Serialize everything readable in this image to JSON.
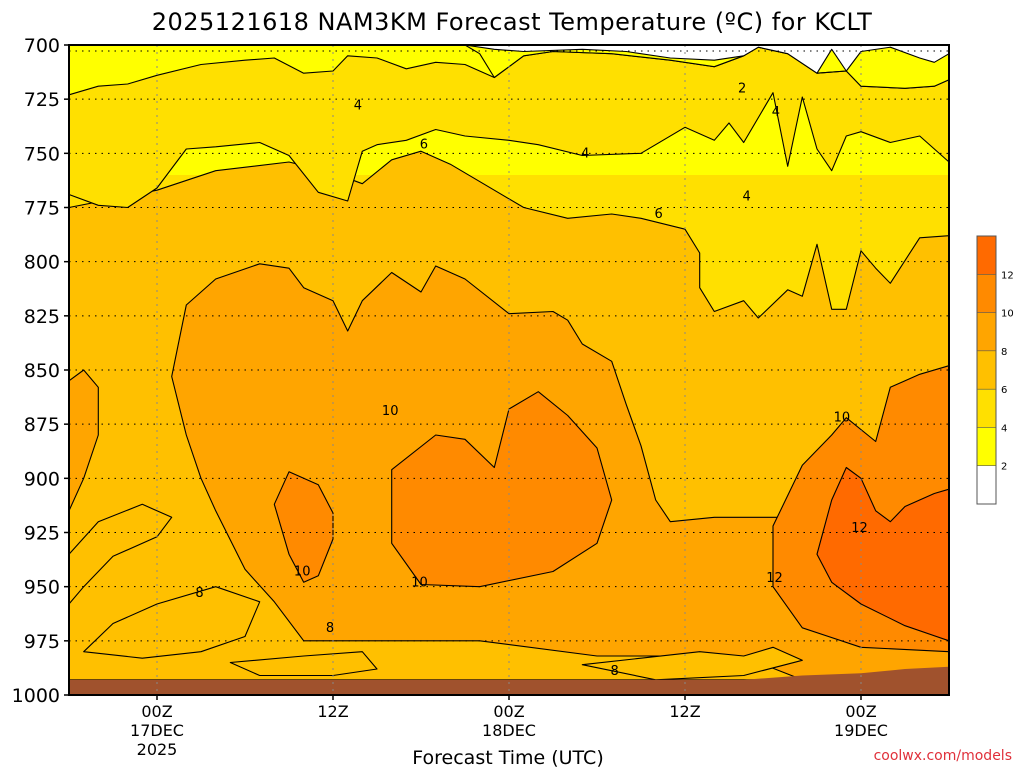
{
  "chart_data": {
    "type": "heatmap",
    "title": "2025121618 NAM3KM Forecast Temperature (ºC) for KCLT",
    "xlabel": "Forecast Time (UTC)",
    "ylabel": "",
    "credit": "coolwx.com/models",
    "x_hours_range": [
      -6,
      54
    ],
    "y_pressure_range": [
      700,
      1000
    ],
    "y_ticks": [
      "700",
      "725",
      "750",
      "775",
      "800",
      "825",
      "850",
      "875",
      "900",
      "925",
      "950",
      "975",
      "1000"
    ],
    "x_ticks": [
      {
        "hour": 0,
        "label": "00Z",
        "date": "17DEC",
        "year": "2025"
      },
      {
        "hour": 12,
        "label": "12Z",
        "date": "",
        "year": ""
      },
      {
        "hour": 24,
        "label": "00Z",
        "date": "18DEC",
        "year": ""
      },
      {
        "hour": 36,
        "label": "12Z",
        "date": "",
        "year": ""
      },
      {
        "hour": 48,
        "label": "00Z",
        "date": "19DEC",
        "year": ""
      }
    ],
    "colorbar": {
      "levels": [
        2,
        4,
        6,
        8,
        10,
        12
      ],
      "labels": [
        "2",
        "4",
        "6",
        "8",
        "10",
        "12"
      ],
      "colors": [
        "#ffffff",
        "#ffff00",
        "#ffe000",
        "#ffc000",
        "#ffa500",
        "#ff8a00",
        "#ff6a00"
      ]
    },
    "contour_labels": [
      {
        "text": "2",
        "hour": 39.9,
        "p": 720
      },
      {
        "text": "4",
        "hour": 13.7,
        "p": 728
      },
      {
        "text": "4",
        "hour": 29.2,
        "p": 750
      },
      {
        "text": "4",
        "hour": 42.2,
        "p": 731
      },
      {
        "text": "4",
        "hour": 40.2,
        "p": 770
      },
      {
        "text": "6",
        "hour": 18.2,
        "p": 746
      },
      {
        "text": "6",
        "hour": 34.2,
        "p": 778
      },
      {
        "text": "8",
        "hour": 2.9,
        "p": 953
      },
      {
        "text": "8",
        "hour": 11.8,
        "p": 969
      },
      {
        "text": "8",
        "hour": 31.2,
        "p": 989
      },
      {
        "text": "10",
        "hour": 15.9,
        "p": 869
      },
      {
        "text": "10",
        "hour": 9.9,
        "p": 943
      },
      {
        "text": "10",
        "hour": 17.9,
        "p": 948
      },
      {
        "text": "10",
        "hour": 46.7,
        "p": 872
      },
      {
        "text": "12",
        "hour": 47.9,
        "p": 923
      },
      {
        "text": "12",
        "hour": 42.1,
        "p": 946
      }
    ],
    "ground_surface": [
      {
        "hour": -6,
        "p": 993
      },
      {
        "hour": 40,
        "p": 993
      },
      {
        "hour": 44,
        "p": 991
      },
      {
        "hour": 48,
        "p": 990
      },
      {
        "hour": 51,
        "p": 988
      },
      {
        "hour": 54,
        "p": 987
      }
    ],
    "regions": [
      {
        "level": "6-8",
        "points": [
          [
            -6,
            775
          ],
          [
            0,
            767
          ],
          [
            4,
            758
          ],
          [
            9,
            754
          ],
          [
            12,
            759
          ],
          [
            14,
            764
          ],
          [
            16,
            753
          ],
          [
            18,
            749
          ],
          [
            20,
            755
          ],
          [
            23,
            767
          ],
          [
            25,
            775
          ],
          [
            28,
            780
          ],
          [
            31,
            778
          ],
          [
            33,
            780
          ],
          [
            36,
            785
          ],
          [
            37,
            796
          ],
          [
            37,
            812
          ],
          [
            38,
            823
          ],
          [
            40,
            818
          ],
          [
            41,
            826
          ],
          [
            43,
            813
          ],
          [
            44,
            816
          ],
          [
            45,
            792
          ],
          [
            46,
            822
          ],
          [
            47,
            822
          ],
          [
            48,
            795
          ],
          [
            49,
            803
          ],
          [
            50,
            810
          ],
          [
            52,
            789
          ],
          [
            54,
            788
          ],
          [
            54,
            993
          ],
          [
            -6,
            993
          ]
        ]
      },
      {
        "level": "8-10",
        "points": [
          [
            1,
            853
          ],
          [
            2,
            820
          ],
          [
            4,
            808
          ],
          [
            7,
            801
          ],
          [
            9,
            803
          ],
          [
            10,
            812
          ],
          [
            12,
            818
          ],
          [
            13,
            832
          ],
          [
            14,
            818
          ],
          [
            16,
            805
          ],
          [
            18,
            814
          ],
          [
            19,
            802
          ],
          [
            21,
            808
          ],
          [
            24,
            824
          ],
          [
            27,
            823
          ],
          [
            28,
            827
          ],
          [
            29,
            838
          ],
          [
            31,
            846
          ],
          [
            32,
            866
          ],
          [
            33,
            885
          ],
          [
            34,
            910
          ],
          [
            35,
            920
          ],
          [
            38,
            918
          ],
          [
            41,
            918
          ],
          [
            43,
            918
          ],
          [
            44,
            914
          ],
          [
            45,
            917
          ],
          [
            47,
            918
          ],
          [
            49,
            905
          ],
          [
            51,
            897
          ],
          [
            54,
            896
          ],
          [
            54,
            993
          ],
          [
            44,
            993
          ],
          [
            41,
            985
          ],
          [
            36,
            982
          ],
          [
            30,
            982
          ],
          [
            22,
            975
          ],
          [
            15,
            975
          ],
          [
            10,
            975
          ],
          [
            8,
            957
          ],
          [
            6,
            942
          ],
          [
            4,
            915
          ],
          [
            3,
            900
          ],
          [
            2,
            880
          ]
        ]
      },
      {
        "level": "8-10",
        "points": [
          [
            -6,
            855
          ],
          [
            -5,
            850
          ],
          [
            -4,
            858
          ],
          [
            -4,
            880
          ],
          [
            -5,
            900
          ],
          [
            -6,
            915
          ]
        ]
      },
      {
        "level": "10-12",
        "points": [
          [
            8,
            912
          ],
          [
            9,
            897
          ],
          [
            11,
            903
          ],
          [
            12,
            916
          ],
          [
            12,
            928
          ],
          [
            11,
            945
          ],
          [
            10,
            948
          ],
          [
            9,
            935
          ]
        ]
      },
      {
        "level": "10-12",
        "points": [
          [
            16,
            896
          ],
          [
            19,
            880
          ],
          [
            21,
            882
          ],
          [
            23,
            895
          ],
          [
            24,
            868
          ],
          [
            26,
            860
          ],
          [
            28,
            871
          ],
          [
            30,
            886
          ],
          [
            31,
            910
          ],
          [
            30,
            930
          ],
          [
            27,
            943
          ],
          [
            22,
            950
          ],
          [
            18,
            949
          ],
          [
            16,
            930
          ]
        ]
      },
      {
        "level": "10-12",
        "points": [
          [
            42,
            922
          ],
          [
            44,
            894
          ],
          [
            46,
            880
          ],
          [
            47,
            872
          ],
          [
            49,
            883
          ],
          [
            50,
            858
          ],
          [
            52,
            852
          ],
          [
            54,
            848
          ],
          [
            54,
            980
          ],
          [
            48,
            978
          ],
          [
            44,
            969
          ],
          [
            42,
            950
          ]
        ]
      },
      {
        "level": "12-",
        "points": [
          [
            45,
            935
          ],
          [
            46,
            910
          ],
          [
            47,
            895
          ],
          [
            48,
            900
          ],
          [
            49,
            915
          ],
          [
            50,
            920
          ],
          [
            51,
            913
          ],
          [
            53,
            907
          ],
          [
            54,
            905
          ],
          [
            54,
            975
          ],
          [
            51,
            968
          ],
          [
            48,
            958
          ],
          [
            46,
            948
          ]
        ]
      },
      {
        "level": "6-8",
        "points": [
          [
            -6,
            935
          ],
          [
            -4,
            920
          ],
          [
            -1,
            912
          ],
          [
            1,
            918
          ],
          [
            0,
            927
          ],
          [
            -3,
            936
          ],
          [
            -5,
            950
          ],
          [
            -6,
            958
          ]
        ]
      },
      {
        "level": "6-8",
        "points": [
          [
            -5,
            980
          ],
          [
            -3,
            967
          ],
          [
            0,
            958
          ],
          [
            4,
            950
          ],
          [
            7,
            957
          ],
          [
            6,
            973
          ],
          [
            3,
            980
          ],
          [
            -1,
            983
          ]
        ]
      },
      {
        "level": "6-8",
        "points": [
          [
            5,
            985
          ],
          [
            10,
            982
          ],
          [
            14,
            980
          ],
          [
            15,
            988
          ],
          [
            12,
            991
          ],
          [
            7,
            991
          ]
        ]
      },
      {
        "level": "6-8",
        "points": [
          [
            29,
            986
          ],
          [
            33,
            983
          ],
          [
            37,
            980
          ],
          [
            40,
            982
          ],
          [
            42,
            978
          ],
          [
            44,
            984
          ],
          [
            40,
            991
          ],
          [
            34,
            993
          ]
        ]
      },
      {
        "level": "4-6",
        "points": [
          [
            -6,
            723
          ],
          [
            -4,
            719
          ],
          [
            -2,
            718
          ],
          [
            0,
            714
          ],
          [
            3,
            709
          ],
          [
            6,
            707
          ],
          [
            8,
            706
          ],
          [
            10,
            713
          ],
          [
            12,
            712
          ],
          [
            13,
            705
          ],
          [
            15,
            706
          ],
          [
            17,
            711
          ],
          [
            19,
            708
          ],
          [
            21,
            709
          ],
          [
            23,
            715
          ],
          [
            25,
            705
          ],
          [
            27,
            703
          ],
          [
            31,
            704
          ],
          [
            35,
            707
          ],
          [
            38,
            710
          ],
          [
            40,
            705
          ],
          [
            41,
            701
          ],
          [
            43,
            704
          ],
          [
            45,
            713
          ],
          [
            47,
            712
          ],
          [
            48,
            719
          ],
          [
            51,
            720
          ],
          [
            53,
            719
          ],
          [
            54,
            716
          ],
          [
            54,
            754
          ],
          [
            52,
            742
          ],
          [
            50,
            745
          ],
          [
            48,
            740
          ],
          [
            47,
            742
          ],
          [
            46,
            758
          ],
          [
            45,
            748
          ],
          [
            44,
            724
          ],
          [
            43,
            756
          ],
          [
            42,
            722
          ],
          [
            40,
            745
          ],
          [
            39,
            736
          ],
          [
            38,
            744
          ],
          [
            36,
            738
          ],
          [
            33,
            750
          ],
          [
            29,
            751
          ],
          [
            26,
            746
          ],
          [
            24,
            744
          ],
          [
            21,
            742
          ],
          [
            19,
            739
          ],
          [
            17,
            744
          ],
          [
            15,
            746
          ],
          [
            14,
            749
          ],
          [
            13,
            772
          ],
          [
            11,
            768
          ],
          [
            9,
            751
          ],
          [
            7,
            745
          ],
          [
            4,
            747
          ],
          [
            2,
            748
          ],
          [
            0,
            766
          ],
          [
            -2,
            775
          ],
          [
            -4,
            774
          ],
          [
            -6,
            769
          ]
        ]
      },
      {
        "level": "2-4",
        "points": [
          [
            21,
            700
          ],
          [
            40,
            700
          ],
          [
            41,
            701
          ],
          [
            43,
            704
          ],
          [
            45,
            713
          ],
          [
            47,
            712
          ],
          [
            47,
            700
          ],
          [
            54,
            700
          ],
          [
            54,
            716
          ],
          [
            53,
            719
          ],
          [
            51,
            720
          ],
          [
            48,
            719
          ],
          [
            47,
            712
          ],
          [
            45,
            713
          ],
          [
            43,
            704
          ],
          [
            41,
            701
          ],
          [
            40,
            705
          ],
          [
            38,
            710
          ],
          [
            35,
            707
          ],
          [
            31,
            704
          ],
          [
            27,
            703
          ],
          [
            25,
            705
          ],
          [
            23,
            715
          ],
          [
            22,
            704
          ]
        ]
      },
      {
        "level": "0-2",
        "points": [
          [
            21,
            700
          ],
          [
            54,
            700
          ],
          [
            54,
            704
          ],
          [
            53,
            708
          ],
          [
            52,
            706
          ],
          [
            50,
            701
          ],
          [
            48,
            703
          ],
          [
            47,
            712
          ],
          [
            46,
            702
          ],
          [
            45,
            713
          ],
          [
            43,
            704
          ],
          [
            41,
            701
          ],
          [
            40,
            705
          ],
          [
            38,
            707
          ],
          [
            35,
            706
          ],
          [
            32,
            703
          ],
          [
            29,
            702
          ],
          [
            25,
            703
          ],
          [
            23,
            702
          ]
        ]
      }
    ]
  }
}
